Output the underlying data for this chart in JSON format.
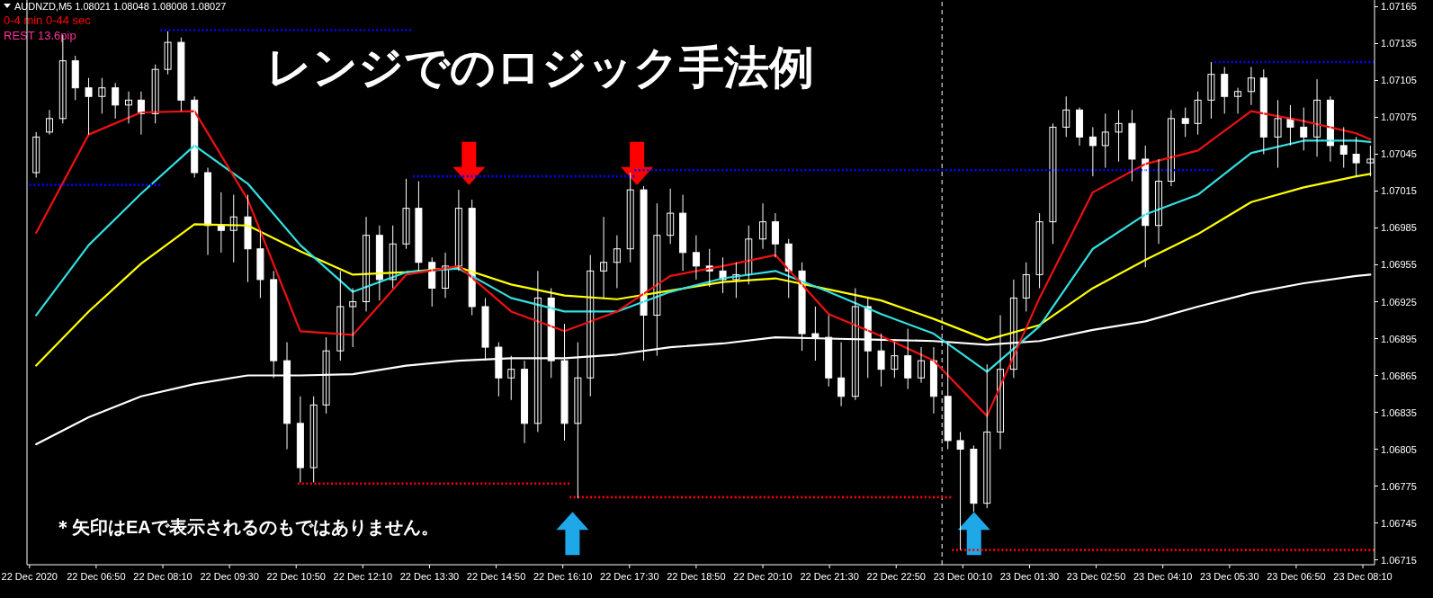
{
  "chart_data": {
    "type": "candlestick",
    "title": "レンジでのロジック手法例",
    "annotations": [
      "AUDNZD,M5  1.08021 1.08048 1.08008 1.08027",
      "0-4 min 0-44 sec",
      "REST 13.6pip",
      "＊矢印はEAで表示されるのもではありません。"
    ],
    "color": "#ffffff",
    "x": [
      "2020-12-22T05:38",
      "2020-12-22T05:54",
      "2020-12-22T06:10",
      "2020-12-22T06:25",
      "2020-12-22T06:41",
      "2020-12-22T06:57",
      "2020-12-22T07:13",
      "2020-12-22T07:29",
      "2020-12-22T07:44",
      "2020-12-22T08:01",
      "2020-12-22T08:16",
      "2020-12-22T08:32",
      "2020-12-22T08:48",
      "2020-12-22T09:04",
      "2020-12-22T09:20",
      "2020-12-22T09:35",
      "2020-12-22T09:52",
      "2020-12-22T10:07",
      "2020-12-22T10:23",
      "2020-12-22T10:39",
      "2020-12-22T10:55",
      "2020-12-22T11:11",
      "2020-12-22T11:26",
      "2020-12-22T11:43",
      "2020-12-22T11:58",
      "2020-12-22T12:14",
      "2020-12-22T12:30",
      "2020-12-22T12:46",
      "2020-12-22T13:02",
      "2020-12-22T13:17",
      "2020-12-22T13:33",
      "2020-12-22T13:49",
      "2020-12-22T14:05",
      "2020-12-22T14:21",
      "2020-12-22T14:37",
      "2020-12-22T14:53",
      "2020-12-22T15:08",
      "2020-12-22T15:24",
      "2020-12-22T15:40",
      "2020-12-22T15:56",
      "2020-12-22T16:12",
      "2020-12-22T16:28",
      "2020-12-22T16:43",
      "2020-12-22T16:59",
      "2020-12-22T17:15",
      "2020-12-22T17:31",
      "2020-12-22T17:47",
      "2020-12-22T18:03",
      "2020-12-22T18:19",
      "2020-12-22T18:34",
      "2020-12-22T18:50",
      "2020-12-22T19:06",
      "2020-12-22T19:22",
      "2020-12-22T19:38",
      "2020-12-22T19:53",
      "2020-12-22T20:10",
      "2020-12-22T20:25",
      "2020-12-22T20:41",
      "2020-12-22T20:57",
      "2020-12-22T21:13",
      "2020-12-22T21:29",
      "2020-12-22T21:44",
      "2020-12-22T22:01",
      "2020-12-22T22:16",
      "2020-12-22T22:32",
      "2020-12-22T22:48",
      "2020-12-22T23:04",
      "2020-12-22T23:20",
      "2020-12-22T23:35",
      "2020-12-22T23:52",
      "2020-12-23T00:07",
      "2020-12-23T00:23",
      "2020-12-23T00:39",
      "2020-12-23T00:55",
      "2020-12-23T01:11",
      "2020-12-23T01:26",
      "2020-12-23T01:42",
      "2020-12-23T01:58",
      "2020-12-23T02:14",
      "2020-12-23T02:30",
      "2020-12-23T02:46",
      "2020-12-23T03:01",
      "2020-12-23T03:17",
      "2020-12-23T03:33",
      "2020-12-23T03:49",
      "2020-12-23T04:05",
      "2020-12-23T04:20",
      "2020-12-23T04:37",
      "2020-12-23T04:52",
      "2020-12-23T05:08",
      "2020-12-23T05:24",
      "2020-12-23T05:40",
      "2020-12-23T05:56",
      "2020-12-23T06:11",
      "2020-12-23T06:28",
      "2020-12-23T06:43",
      "2020-12-23T06:59",
      "2020-12-23T07:15",
      "2020-12-23T07:31",
      "2020-12-23T07:47",
      "2020-12-23T08:02",
      "2020-12-23T08:19"
    ],
    "ohlc": [
      [
        1.0703,
        1.07063,
        1.07026,
        1.07059
      ],
      [
        1.07063,
        1.07081,
        1.07061,
        1.07074
      ],
      [
        1.07074,
        1.07142,
        1.0707,
        1.07121
      ],
      [
        1.07121,
        1.07125,
        1.07089,
        1.07099
      ],
      [
        1.07099,
        1.07107,
        1.07061,
        1.07092
      ],
      [
        1.07092,
        1.07107,
        1.07078,
        1.07099
      ],
      [
        1.07099,
        1.07103,
        1.07074,
        1.07085
      ],
      [
        1.07085,
        1.07096,
        1.0707,
        1.07089
      ],
      [
        1.07089,
        1.07096,
        1.07061,
        1.07078
      ],
      [
        1.07078,
        1.07118,
        1.0707,
        1.07114
      ],
      [
        1.07114,
        1.07145,
        1.0711,
        1.07136
      ],
      [
        1.07136,
        1.0714,
        1.0708,
        1.07089
      ],
      [
        1.07089,
        1.07092,
        1.07026,
        1.0703
      ],
      [
        1.0703,
        1.07034,
        1.06963,
        1.06987
      ],
      [
        1.06987,
        1.07014,
        1.06965,
        1.06983
      ],
      [
        1.06983,
        1.07012,
        1.06957,
        1.06994
      ],
      [
        1.06994,
        1.07012,
        1.06941,
        1.06968
      ],
      [
        1.06968,
        1.06983,
        1.06928,
        1.06943
      ],
      [
        1.06943,
        1.0695,
        1.06863,
        1.06877
      ],
      [
        1.06877,
        1.06892,
        1.06805,
        1.06826
      ],
      [
        1.06826,
        1.06848,
        1.06778,
        1.0679
      ],
      [
        1.0679,
        1.06848,
        1.06778,
        1.06841
      ],
      [
        1.06841,
        1.06896,
        1.06834,
        1.06885
      ],
      [
        1.06885,
        1.0695,
        1.06877,
        1.06921
      ],
      [
        1.06921,
        1.06936,
        1.06888,
        1.06925
      ],
      [
        1.06925,
        1.06994,
        1.06917,
        1.06979
      ],
      [
        1.06979,
        1.06987,
        1.06926,
        1.06943
      ],
      [
        1.06943,
        1.06987,
        1.06936,
        1.06972
      ],
      [
        1.06972,
        1.07025,
        1.06968,
        1.07001
      ],
      [
        1.07001,
        1.07023,
        1.0695,
        1.06957
      ],
      [
        1.06957,
        1.06961,
        1.06921,
        1.06936
      ],
      [
        1.06936,
        1.06965,
        1.06928,
        1.06954
      ],
      [
        1.06954,
        1.07016,
        1.0695,
        1.07001
      ],
      [
        1.07001,
        1.07008,
        1.06914,
        1.06921
      ],
      [
        1.06921,
        1.06928,
        1.06877,
        1.06888
      ],
      [
        1.06888,
        1.06892,
        1.06848,
        1.06863
      ],
      [
        1.06863,
        1.06881,
        1.06845,
        1.0687
      ],
      [
        1.0687,
        1.06877,
        1.0681,
        1.06826
      ],
      [
        1.06826,
        1.0695,
        1.06819,
        1.06928
      ],
      [
        1.06928,
        1.06936,
        1.06863,
        1.06877
      ],
      [
        1.06877,
        1.06907,
        1.06812,
        1.06826
      ],
      [
        1.06826,
        1.06892,
        1.06765,
        1.06863
      ],
      [
        1.06863,
        1.06963,
        1.06848,
        1.0695
      ],
      [
        1.0695,
        1.06994,
        1.06928,
        1.06957
      ],
      [
        1.06957,
        1.06979,
        1.06936,
        1.06968
      ],
      [
        1.06968,
        1.0703,
        1.06957,
        1.07016
      ],
      [
        1.07016,
        1.07019,
        1.06877,
        1.06914
      ],
      [
        1.06914,
        1.07005,
        1.06881,
        1.06979
      ],
      [
        1.06979,
        1.07017,
        1.06972,
        1.06997
      ],
      [
        1.06997,
        1.07012,
        1.0695,
        1.06965
      ],
      [
        1.06965,
        1.06979,
        1.06943,
        1.06954
      ],
      [
        1.06954,
        1.06968,
        1.06937,
        1.0695
      ],
      [
        1.0695,
        1.06961,
        1.06932,
        1.06943
      ],
      [
        1.06943,
        1.06957,
        1.06928,
        1.06947
      ],
      [
        1.06947,
        1.06987,
        1.06939,
        1.06976
      ],
      [
        1.06976,
        1.07005,
        1.06968,
        1.0699
      ],
      [
        1.0699,
        1.06997,
        1.06961,
        1.06972
      ],
      [
        1.06972,
        1.06976,
        1.06928,
        1.0695
      ],
      [
        1.0695,
        1.06957,
        1.06885,
        1.06899
      ],
      [
        1.06899,
        1.06921,
        1.06877,
        1.06896
      ],
      [
        1.06896,
        1.06914,
        1.06856,
        1.06863
      ],
      [
        1.06863,
        1.06892,
        1.0684,
        1.06848
      ],
      [
        1.06848,
        1.06936,
        1.06845,
        1.06921
      ],
      [
        1.06921,
        1.06928,
        1.06863,
        1.06885
      ],
      [
        1.06885,
        1.06899,
        1.06856,
        1.0687
      ],
      [
        1.0687,
        1.06892,
        1.06863,
        1.06881
      ],
      [
        1.06881,
        1.06903,
        1.06854,
        1.06863
      ],
      [
        1.06863,
        1.06888,
        1.06859,
        1.06877
      ],
      [
        1.06877,
        1.06888,
        1.06834,
        1.06848
      ],
      [
        1.06848,
        1.06892,
        1.06805,
        1.06812
      ],
      [
        1.06812,
        1.06819,
        1.06723,
        1.06805
      ],
      [
        1.06805,
        1.06808,
        1.06754,
        1.06761
      ],
      [
        1.06761,
        1.06874,
        1.06757,
        1.06819
      ],
      [
        1.06819,
        1.06914,
        1.06805,
        1.0687
      ],
      [
        1.0687,
        1.06943,
        1.06863,
        1.06928
      ],
      [
        1.06928,
        1.06957,
        1.06917,
        1.06947
      ],
      [
        1.06947,
        1.06997,
        1.06936,
        1.0699
      ],
      [
        1.0699,
        1.0707,
        1.06972,
        1.07067
      ],
      [
        1.07067,
        1.07092,
        1.07059,
        1.07081
      ],
      [
        1.07081,
        1.07083,
        1.07052,
        1.07059
      ],
      [
        1.07059,
        1.07067,
        1.07027,
        1.07052
      ],
      [
        1.07052,
        1.07078,
        1.07034,
        1.07063
      ],
      [
        1.07063,
        1.07081,
        1.07039,
        1.0707
      ],
      [
        1.0707,
        1.07081,
        1.07023,
        1.07041
      ],
      [
        1.07041,
        1.07052,
        1.06953,
        1.06987
      ],
      [
        1.06987,
        1.07041,
        1.06972,
        1.07023
      ],
      [
        1.07023,
        1.07081,
        1.07019,
        1.07074
      ],
      [
        1.07074,
        1.07083,
        1.07059,
        1.0707
      ],
      [
        1.0707,
        1.07096,
        1.07061,
        1.07089
      ],
      [
        1.07089,
        1.0712,
        1.07074,
        1.0711
      ],
      [
        1.0711,
        1.07116,
        1.07078,
        1.07092
      ],
      [
        1.07092,
        1.07099,
        1.07078,
        1.07096
      ],
      [
        1.07096,
        1.07116,
        1.07085,
        1.07107
      ],
      [
        1.07107,
        1.07114,
        1.07045,
        1.07059
      ],
      [
        1.07059,
        1.07089,
        1.07034,
        1.07074
      ],
      [
        1.07074,
        1.07085,
        1.07052,
        1.07067
      ],
      [
        1.07067,
        1.07083,
        1.07048,
        1.07059
      ],
      [
        1.07059,
        1.07106,
        1.07043,
        1.07089
      ],
      [
        1.07089,
        1.07092,
        1.07039,
        1.07052
      ],
      [
        1.07052,
        1.07067,
        1.07034,
        1.07045
      ],
      [
        1.07045,
        1.07059,
        1.07027,
        1.07038
      ],
      [
        1.07038,
        1.07052,
        1.07027,
        1.07041
      ]
    ],
    "series": [
      {
        "type": "line",
        "color": "#ffffff",
        "x": [
          "2020-12-22T05:38",
          "2020-12-22T06:41",
          "2020-12-22T07:44",
          "2020-12-22T08:48",
          "2020-12-22T09:52",
          "2020-12-22T10:55",
          "2020-12-22T11:58",
          "2020-12-22T13:02",
          "2020-12-22T14:05",
          "2020-12-22T15:08",
          "2020-12-22T16:12",
          "2020-12-22T17:15",
          "2020-12-22T18:19",
          "2020-12-22T19:22",
          "2020-12-22T20:25",
          "2020-12-22T21:29",
          "2020-12-22T22:32",
          "2020-12-22T23:35",
          "2020-12-23T00:39",
          "2020-12-23T01:42",
          "2020-12-23T02:46",
          "2020-12-23T03:49",
          "2020-12-23T04:52",
          "2020-12-23T05:56",
          "2020-12-23T06:59",
          "2020-12-23T08:02",
          "2020-12-23T08:19"
        ],
        "values": [
          1.06809,
          1.06831,
          1.06848,
          1.06858,
          1.06865,
          1.06865,
          1.06866,
          1.06873,
          1.06877,
          1.06879,
          1.06879,
          1.06882,
          1.06888,
          1.06891,
          1.06896,
          1.06895,
          1.06894,
          1.06893,
          1.0689,
          1.06893,
          1.06902,
          1.06909,
          1.06921,
          1.06932,
          1.0694,
          1.06946,
          1.06947
        ]
      },
      {
        "type": "line",
        "color": "#ffff00",
        "x": [
          "2020-12-22T05:38",
          "2020-12-22T06:41",
          "2020-12-22T07:44",
          "2020-12-22T08:48",
          "2020-12-22T09:52",
          "2020-12-22T10:55",
          "2020-12-22T11:58",
          "2020-12-22T13:02",
          "2020-12-22T14:05",
          "2020-12-22T15:08",
          "2020-12-22T16:12",
          "2020-12-22T17:15",
          "2020-12-22T18:19",
          "2020-12-22T19:22",
          "2020-12-22T20:25",
          "2020-12-22T21:29",
          "2020-12-22T22:32",
          "2020-12-22T23:35",
          "2020-12-23T00:39",
          "2020-12-23T01:42",
          "2020-12-23T02:46",
          "2020-12-23T03:49",
          "2020-12-23T04:52",
          "2020-12-23T05:56",
          "2020-12-23T06:59",
          "2020-12-23T08:02",
          "2020-12-23T08:19"
        ],
        "values": [
          1.06873,
          1.06917,
          1.06956,
          1.06988,
          1.06987,
          1.06966,
          1.06947,
          1.06949,
          1.06953,
          1.06939,
          1.0693,
          1.06927,
          1.06934,
          1.06941,
          1.06944,
          1.06935,
          1.06926,
          1.06911,
          1.06894,
          1.06906,
          1.06936,
          1.06959,
          1.0698,
          1.07006,
          1.07018,
          1.07027,
          1.07029
        ]
      },
      {
        "type": "line",
        "color": "#33e0e0",
        "x": [
          "2020-12-22T05:38",
          "2020-12-22T06:41",
          "2020-12-22T07:44",
          "2020-12-22T08:48",
          "2020-12-22T09:52",
          "2020-12-22T10:55",
          "2020-12-22T11:58",
          "2020-12-22T13:02",
          "2020-12-22T14:05",
          "2020-12-22T15:08",
          "2020-12-22T16:12",
          "2020-12-22T17:15",
          "2020-12-22T18:19",
          "2020-12-22T19:22",
          "2020-12-22T20:25",
          "2020-12-22T21:29",
          "2020-12-22T22:32",
          "2020-12-22T23:35",
          "2020-12-23T00:39",
          "2020-12-23T01:42",
          "2020-12-23T02:46",
          "2020-12-23T03:49",
          "2020-12-23T04:52",
          "2020-12-23T05:56",
          "2020-12-23T06:59",
          "2020-12-23T08:02",
          "2020-12-23T08:19"
        ],
        "values": [
          1.06914,
          1.06971,
          1.07013,
          1.07052,
          1.07021,
          1.06971,
          1.06933,
          1.06949,
          1.06952,
          1.06928,
          1.06917,
          1.06917,
          1.06933,
          1.06944,
          1.0695,
          1.06933,
          1.06915,
          1.06899,
          1.06868,
          1.06905,
          1.06968,
          1.06996,
          1.07012,
          1.07046,
          1.07056,
          1.07056,
          1.07055
        ]
      },
      {
        "type": "line",
        "color": "#ee1111",
        "x": [
          "2020-12-22T05:38",
          "2020-12-22T06:41",
          "2020-12-22T07:44",
          "2020-12-22T08:48",
          "2020-12-22T09:52",
          "2020-12-22T10:55",
          "2020-12-22T11:58",
          "2020-12-22T13:02",
          "2020-12-22T14:05",
          "2020-12-22T15:08",
          "2020-12-22T16:12",
          "2020-12-22T17:15",
          "2020-12-22T18:19",
          "2020-12-22T19:22",
          "2020-12-22T20:25",
          "2020-12-22T21:29",
          "2020-12-22T22:32",
          "2020-12-22T23:35",
          "2020-12-23T00:39",
          "2020-12-23T01:42",
          "2020-12-23T02:46",
          "2020-12-23T03:49",
          "2020-12-23T04:52",
          "2020-12-23T05:56",
          "2020-12-23T06:59",
          "2020-12-23T08:02",
          "2020-12-23T08:19"
        ],
        "values": [
          1.06981,
          1.07061,
          1.07079,
          1.0708,
          1.07008,
          1.06901,
          1.06898,
          1.06947,
          1.06954,
          1.06917,
          1.06901,
          1.06917,
          1.06946,
          1.06954,
          1.06963,
          1.06915,
          1.06897,
          1.06877,
          1.06832,
          1.06928,
          1.07014,
          1.07037,
          1.07048,
          1.0708,
          1.07072,
          1.07062,
          1.07057
        ]
      },
      {
        "type": "line",
        "color": "#0000ff",
        "line_style": "dotted",
        "x": [
          "2020-12-22T05:30",
          "2020-12-22T08:07"
        ],
        "values": [
          1.0702,
          1.0702
        ]
      },
      {
        "type": "line",
        "color": "#0000ff",
        "line_style": "dotted",
        "x": [
          "2020-12-22T08:07",
          "2020-12-22T13:08"
        ],
        "values": [
          1.07146,
          1.07146
        ]
      },
      {
        "type": "line",
        "color": "#0000ff",
        "line_style": "dotted",
        "x": [
          "2020-12-22T13:10",
          "2020-12-22T17:36"
        ],
        "values": [
          1.07027,
          1.07027
        ]
      },
      {
        "type": "line",
        "color": "#0000ff",
        "line_style": "dotted",
        "x": [
          "2020-12-22T17:36",
          "2020-12-23T05:10"
        ],
        "values": [
          1.07032,
          1.07032
        ]
      },
      {
        "type": "line",
        "color": "#0000ff",
        "line_style": "dotted",
        "x": [
          "2020-12-23T05:12",
          "2020-12-23T08:24"
        ],
        "values": [
          1.0712,
          1.0712
        ]
      },
      {
        "type": "line",
        "color": "#ff0000",
        "line_style": "dotted",
        "x": [
          "2020-12-22T10:52",
          "2020-12-22T16:18"
        ],
        "values": [
          1.06777,
          1.06777
        ]
      },
      {
        "type": "line",
        "color": "#ff0000",
        "line_style": "dotted",
        "x": [
          "2020-12-22T16:18",
          "2020-12-22T23:56"
        ],
        "values": [
          1.06766,
          1.06766
        ]
      },
      {
        "type": "line",
        "color": "#ff0000",
        "line_style": "dotted",
        "x": [
          "2020-12-22T23:57",
          "2020-12-23T08:24"
        ],
        "values": [
          1.06723,
          1.06723
        ]
      }
    ],
    "ref_lines": [
      {
        "axis": "x",
        "value": "2020-12-22T23:45",
        "color": "#ffffff",
        "line_style": "dashed"
      }
    ],
    "xlim": [
      "2020-12-22T05:27",
      "2020-12-23T08:24"
    ],
    "ylim": [
      1.06711,
      1.07169
    ],
    "xticks": [
      {
        "value": "2020-12-22T05:30",
        "label": "22 Dec 2020"
      },
      {
        "value": "2020-12-22T06:50",
        "label": "22 Dec 06:50"
      },
      {
        "value": "2020-12-22T08:10",
        "label": "22 Dec 08:10"
      },
      {
        "value": "2020-12-22T09:30",
        "label": "22 Dec 09:30"
      },
      {
        "value": "2020-12-22T10:50",
        "label": "22 Dec 10:50"
      },
      {
        "value": "2020-12-22T12:10",
        "label": "22 Dec 12:10"
      },
      {
        "value": "2020-12-22T13:30",
        "label": "22 Dec 13:30"
      },
      {
        "value": "2020-12-22T14:50",
        "label": "22 Dec 14:50"
      },
      {
        "value": "2020-12-22T16:10",
        "label": "22 Dec 16:10"
      },
      {
        "value": "2020-12-22T17:30",
        "label": "22 Dec 17:30"
      },
      {
        "value": "2020-12-22T18:50",
        "label": "22 Dec 18:50"
      },
      {
        "value": "2020-12-22T20:10",
        "label": "22 Dec 20:10"
      },
      {
        "value": "2020-12-22T21:30",
        "label": "22 Dec 21:30"
      },
      {
        "value": "2020-12-22T22:50",
        "label": "22 Dec 22:50"
      },
      {
        "value": "2020-12-23T00:10",
        "label": "23 Dec 00:10"
      },
      {
        "value": "2020-12-23T01:30",
        "label": "23 Dec 01:30"
      },
      {
        "value": "2020-12-23T02:50",
        "label": "23 Dec 02:50"
      },
      {
        "value": "2020-12-23T04:10",
        "label": "23 Dec 04:10"
      },
      {
        "value": "2020-12-23T05:30",
        "label": "23 Dec 05:30"
      },
      {
        "value": "2020-12-23T06:50",
        "label": "23 Dec 06:50"
      },
      {
        "value": "2020-12-23T08:10",
        "label": "23 Dec 08:10"
      }
    ],
    "yticks": [
      1.06715,
      1.06745,
      1.06775,
      1.06805,
      1.06835,
      1.06865,
      1.06895,
      1.06925,
      1.06955,
      1.06985,
      1.07015,
      1.07045,
      1.07075,
      1.07105,
      1.07135,
      1.07165
    ]
  }
}
